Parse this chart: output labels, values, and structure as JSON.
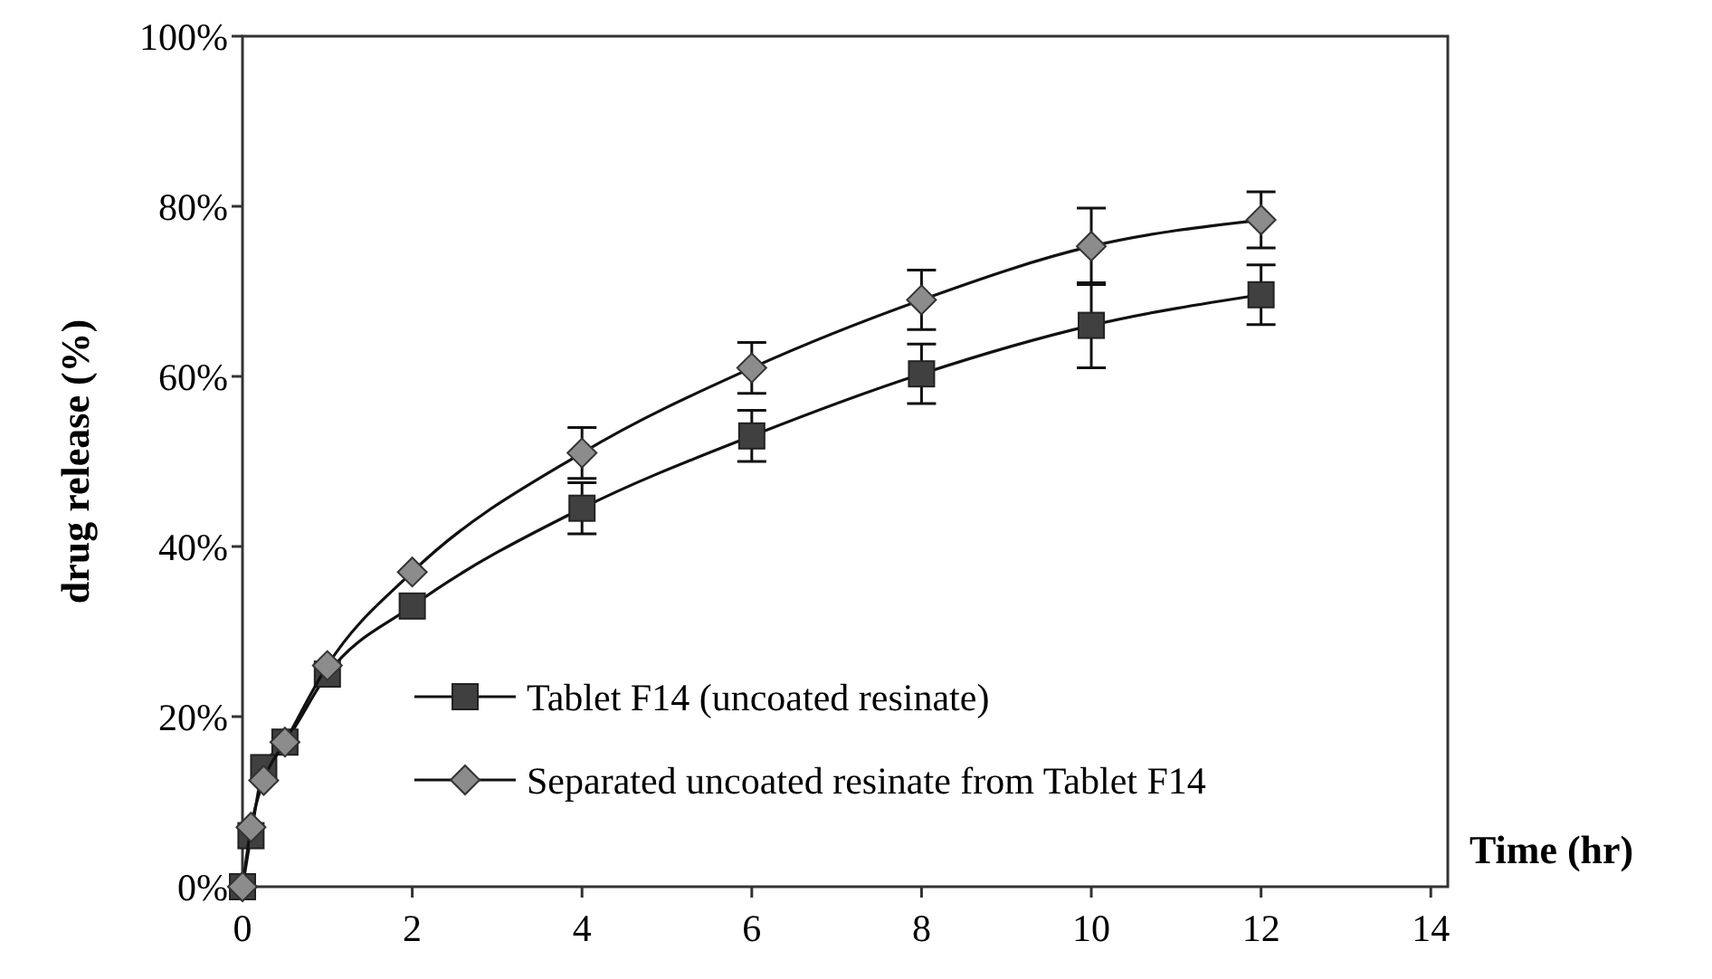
{
  "chart_data": {
    "type": "line",
    "xlabel": "Time (hr)",
    "ylabel": "drug release (%)",
    "x": [
      0,
      0.1,
      0.25,
      0.5,
      1,
      2,
      4,
      6,
      8,
      10,
      12
    ],
    "series": [
      {
        "name": "Tablet F14 (uncoated resinate)",
        "color": "#404040",
        "marker": "square",
        "values": [
          0,
          6,
          14,
          17,
          25,
          33,
          44.5,
          53,
          60.3,
          66,
          69.6
        ],
        "errors": [
          null,
          null,
          null,
          null,
          null,
          null,
          3,
          3,
          3.5,
          5,
          3.5
        ]
      },
      {
        "name": "Separated uncoated resinate from Tablet F14",
        "color": "#8c8c8c",
        "marker": "diamond",
        "values": [
          0,
          7,
          12.5,
          17,
          26,
          37,
          51,
          61,
          69,
          75.3,
          78.4
        ],
        "errors": [
          null,
          null,
          null,
          null,
          null,
          null,
          3,
          3,
          3.5,
          4.5,
          3.3
        ]
      }
    ],
    "xlim": [
      0,
      14.2
    ],
    "xticks": [
      0,
      2,
      4,
      6,
      8,
      10,
      12,
      14
    ],
    "ylim": [
      0,
      100
    ],
    "yticks": [
      {
        "value": 0,
        "label": "0%"
      },
      {
        "value": 20,
        "label": "20%"
      },
      {
        "value": 40,
        "label": "40%"
      },
      {
        "value": 60,
        "label": "60%"
      },
      {
        "value": 80,
        "label": "80%"
      },
      {
        "value": 100,
        "label": "100%"
      }
    ],
    "grid": false,
    "legend": "bottom",
    "line_style": "solid"
  }
}
